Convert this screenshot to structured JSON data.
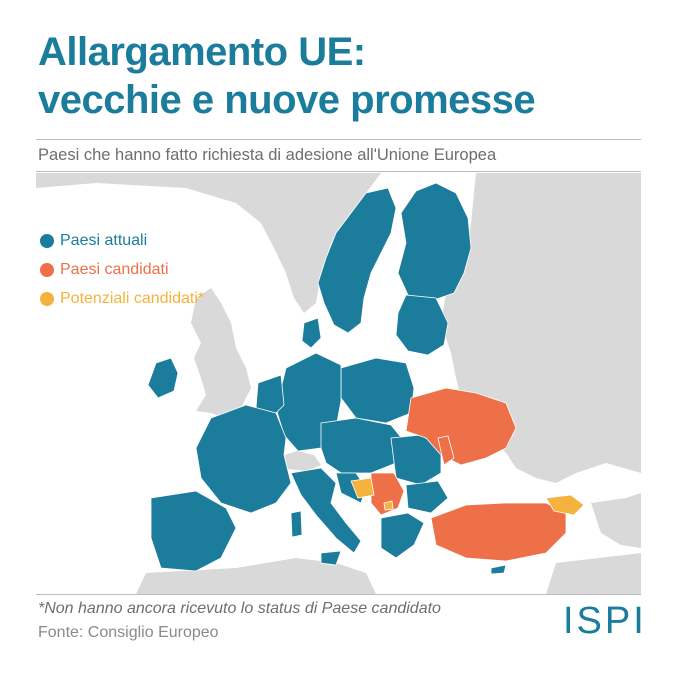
{
  "header": {
    "title_line1": "Allargamento UE:",
    "title_line2": "vecchie e nuove promesse",
    "subtitle": "Paesi che hanno fatto richiesta di adesione all'Unione Europea"
  },
  "legend": [
    {
      "label": "Paesi attuali",
      "color": "#1b7c9c"
    },
    {
      "label": "Paesi candidati",
      "color": "#ee7049"
    },
    {
      "label": "Potenziali candidati*",
      "color": "#f5b23d"
    }
  ],
  "colors": {
    "title": "#1b7c9c",
    "eu_member": "#1b7c9c",
    "candidate": "#ee7049",
    "potential_candidate": "#f5b23d",
    "non_eu_land": "#d9d9d9",
    "sea": "#ffffff"
  },
  "footer": {
    "note": "*Non hanno ancora ricevuto lo status di Paese candidato",
    "source": "Fonte: Consiglio Europeo",
    "logo": "ISPI"
  }
}
